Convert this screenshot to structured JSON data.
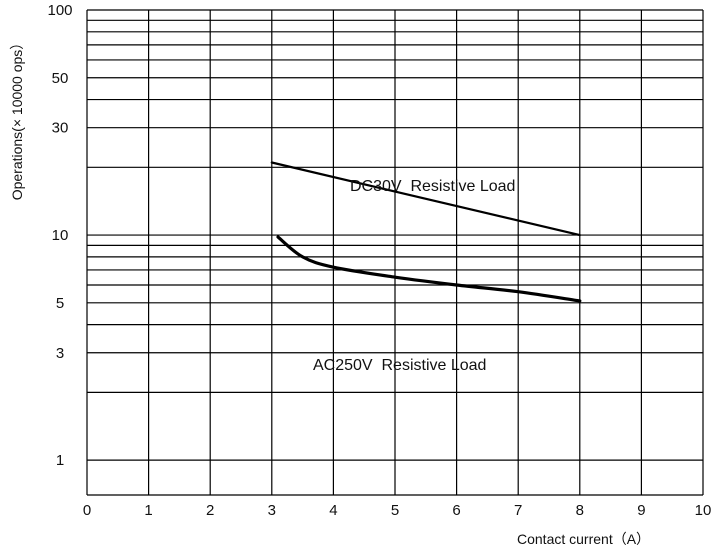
{
  "chart_data": {
    "type": "line",
    "xlabel": "Contact current（A）",
    "ylabel": "Operations(× 10000 ops）",
    "xlim": [
      0,
      10
    ],
    "ylim": [
      0.7,
      100
    ],
    "y_scale": "log",
    "grid": true,
    "x_ticks": [
      "0",
      "1",
      "2",
      "3",
      "4",
      "5",
      "6",
      "7",
      "8",
      "9",
      "10"
    ],
    "y_ticks": [
      {
        "value": 1,
        "label": "1"
      },
      {
        "value": 3,
        "label": "3"
      },
      {
        "value": 5,
        "label": "5"
      },
      {
        "value": 10,
        "label": "10"
      },
      {
        "value": 30,
        "label": "30"
      },
      {
        "value": 50,
        "label": "50"
      },
      {
        "value": 100,
        "label": "100"
      }
    ],
    "series": [
      {
        "name": "DC30V  Resistive Load",
        "x": [
          3,
          8
        ],
        "y": [
          21,
          10
        ],
        "color": "#000000"
      },
      {
        "name": "AC250V  Resistive Load",
        "x": [
          3.1,
          3.5,
          4,
          5,
          6,
          7,
          8
        ],
        "y": [
          9.8,
          8.0,
          7.2,
          6.5,
          6.0,
          5.6,
          5.1
        ],
        "color": "#000000"
      }
    ]
  }
}
